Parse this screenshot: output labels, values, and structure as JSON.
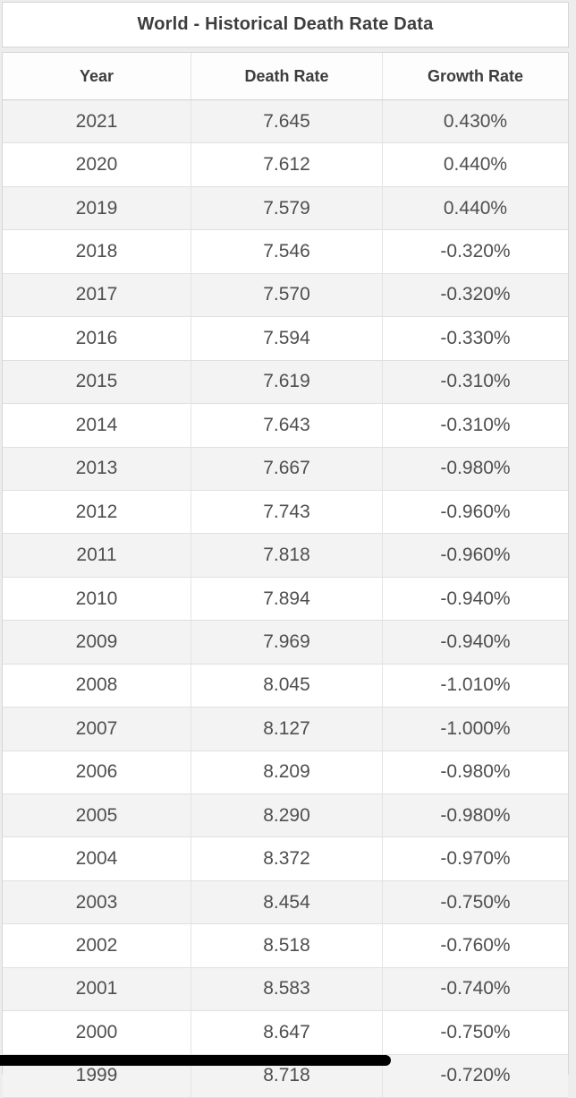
{
  "page": {
    "title": "World - Historical Death Rate Data"
  },
  "table": {
    "columns": [
      "Year",
      "Death Rate",
      "Growth Rate"
    ],
    "rows": [
      {
        "year": "2021",
        "death_rate": "7.645",
        "growth_rate": "0.430%"
      },
      {
        "year": "2020",
        "death_rate": "7.612",
        "growth_rate": "0.440%"
      },
      {
        "year": "2019",
        "death_rate": "7.579",
        "growth_rate": "0.440%"
      },
      {
        "year": "2018",
        "death_rate": "7.546",
        "growth_rate": "-0.320%"
      },
      {
        "year": "2017",
        "death_rate": "7.570",
        "growth_rate": "-0.320%"
      },
      {
        "year": "2016",
        "death_rate": "7.594",
        "growth_rate": "-0.330%"
      },
      {
        "year": "2015",
        "death_rate": "7.619",
        "growth_rate": "-0.310%"
      },
      {
        "year": "2014",
        "death_rate": "7.643",
        "growth_rate": "-0.310%"
      },
      {
        "year": "2013",
        "death_rate": "7.667",
        "growth_rate": "-0.980%"
      },
      {
        "year": "2012",
        "death_rate": "7.743",
        "growth_rate": "-0.960%"
      },
      {
        "year": "2011",
        "death_rate": "7.818",
        "growth_rate": "-0.960%"
      },
      {
        "year": "2010",
        "death_rate": "7.894",
        "growth_rate": "-0.940%"
      },
      {
        "year": "2009",
        "death_rate": "7.969",
        "growth_rate": "-0.940%"
      },
      {
        "year": "2008",
        "death_rate": "8.045",
        "growth_rate": "-1.010%"
      },
      {
        "year": "2007",
        "death_rate": "8.127",
        "growth_rate": "-1.000%"
      },
      {
        "year": "2006",
        "death_rate": "8.209",
        "growth_rate": "-0.980%"
      },
      {
        "year": "2005",
        "death_rate": "8.290",
        "growth_rate": "-0.980%"
      },
      {
        "year": "2004",
        "death_rate": "8.372",
        "growth_rate": "-0.970%"
      },
      {
        "year": "2003",
        "death_rate": "8.454",
        "growth_rate": "-0.750%"
      },
      {
        "year": "2002",
        "death_rate": "8.518",
        "growth_rate": "-0.760%"
      },
      {
        "year": "2001",
        "death_rate": "8.583",
        "growth_rate": "-0.740%"
      },
      {
        "year": "2000",
        "death_rate": "8.647",
        "growth_rate": "-0.750%"
      },
      {
        "year": "1999",
        "death_rate": "8.718",
        "growth_rate": "-0.720%"
      }
    ]
  },
  "chart_data": {
    "type": "table",
    "title": "World - Historical Death Rate Data",
    "columns": [
      "Year",
      "Death Rate",
      "Growth Rate"
    ],
    "years": [
      2021,
      2020,
      2019,
      2018,
      2017,
      2016,
      2015,
      2014,
      2013,
      2012,
      2011,
      2010,
      2009,
      2008,
      2007,
      2006,
      2005,
      2004,
      2003,
      2002,
      2001,
      2000,
      1999
    ],
    "death_rate": [
      7.645,
      7.612,
      7.579,
      7.546,
      7.57,
      7.594,
      7.619,
      7.643,
      7.667,
      7.743,
      7.818,
      7.894,
      7.969,
      8.045,
      8.127,
      8.209,
      8.29,
      8.372,
      8.454,
      8.518,
      8.583,
      8.647,
      8.718
    ],
    "growth_rate_pct": [
      0.43,
      0.44,
      0.44,
      -0.32,
      -0.32,
      -0.33,
      -0.31,
      -0.31,
      -0.98,
      -0.96,
      -0.96,
      -0.94,
      -0.94,
      -1.01,
      -1.0,
      -0.98,
      -0.98,
      -0.97,
      -0.75,
      -0.76,
      -0.74,
      -0.75,
      -0.72
    ]
  },
  "colors": {
    "row_stripe": "#f3f3f3",
    "row_white": "#ffffff",
    "border": "#d6d6d6",
    "header_text": "#3d3d3d",
    "cell_text": "#4f4f4f",
    "scroll_indicator": "#000000"
  }
}
